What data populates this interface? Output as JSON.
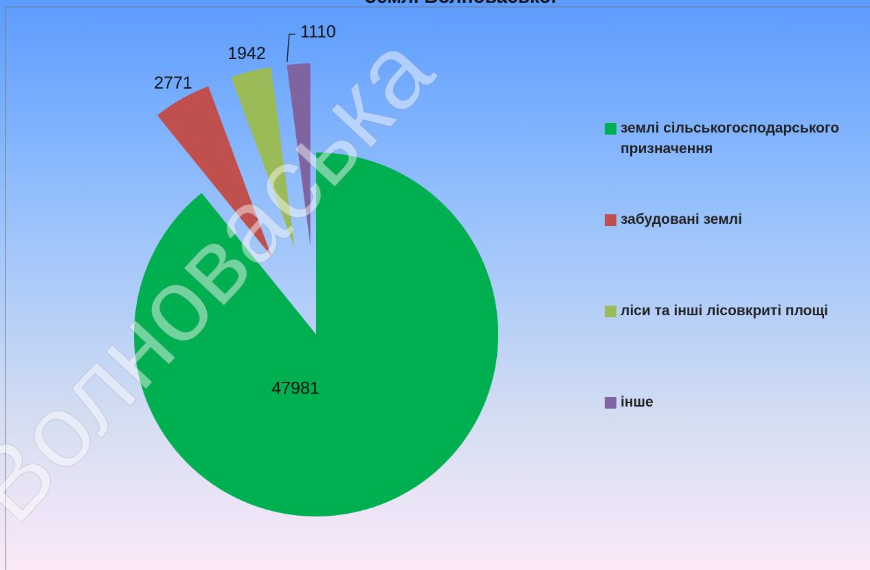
{
  "chart_data": {
    "type": "pie",
    "title": "Землі Волноваської",
    "watermark": "Волноваська",
    "categories": [
      "землі сільськогосподарського призначення",
      "забудовані землі",
      "ліси та інші лісовкриті площі",
      "інше"
    ],
    "values": [
      47981,
      2771,
      1942,
      1110
    ],
    "colors": [
      "#00b050",
      "#c0504d",
      "#9bbb59",
      "#8064a2"
    ],
    "legend": "right"
  }
}
